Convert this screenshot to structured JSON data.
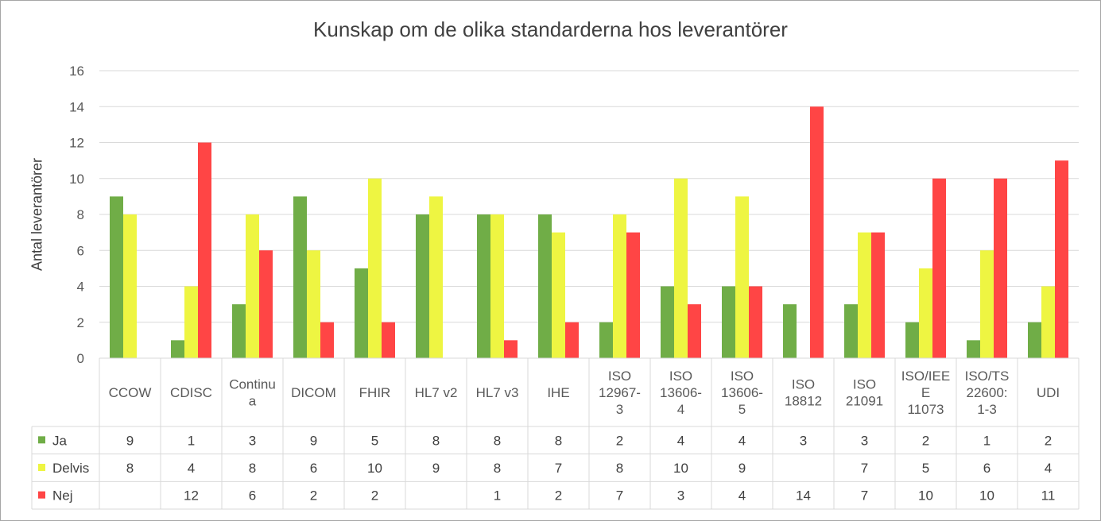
{
  "chart_data": {
    "type": "bar",
    "title": "Kunskap om de olika standarderna hos leverantörer",
    "xlabel": "",
    "ylabel": "Antal leverantörer",
    "ylim": [
      0,
      16
    ],
    "yticks": [
      0,
      2,
      4,
      6,
      8,
      10,
      12,
      14,
      16
    ],
    "grid": true,
    "legend": "data-table",
    "categories": [
      [
        "CCOW"
      ],
      [
        "CDISC"
      ],
      [
        "Continu",
        "a"
      ],
      [
        "DICOM"
      ],
      [
        "FHIR"
      ],
      [
        "HL7 v2"
      ],
      [
        "HL7 v3"
      ],
      [
        "IHE"
      ],
      [
        "ISO",
        "12967-",
        "3"
      ],
      [
        "ISO",
        "13606-",
        "4"
      ],
      [
        "ISO",
        "13606-",
        "5"
      ],
      [
        "ISO",
        "18812"
      ],
      [
        "ISO",
        "21091"
      ],
      [
        "ISO/IEE",
        "E",
        "11073"
      ],
      [
        "ISO/TS",
        "22600:",
        "1-3"
      ],
      [
        "UDI"
      ]
    ],
    "series": [
      {
        "name": "Ja",
        "color": "#70ad47",
        "values": [
          9,
          1,
          3,
          9,
          5,
          8,
          8,
          8,
          2,
          4,
          4,
          3,
          3,
          2,
          1,
          2
        ]
      },
      {
        "name": "Delvis",
        "color": "#eef542",
        "values": [
          8,
          4,
          8,
          6,
          10,
          9,
          8,
          7,
          8,
          10,
          9,
          null,
          7,
          5,
          6,
          4
        ]
      },
      {
        "name": "Nej",
        "color": "#ff4545",
        "values": [
          null,
          12,
          6,
          2,
          2,
          null,
          1,
          2,
          7,
          3,
          4,
          14,
          7,
          10,
          10,
          11
        ]
      }
    ]
  }
}
